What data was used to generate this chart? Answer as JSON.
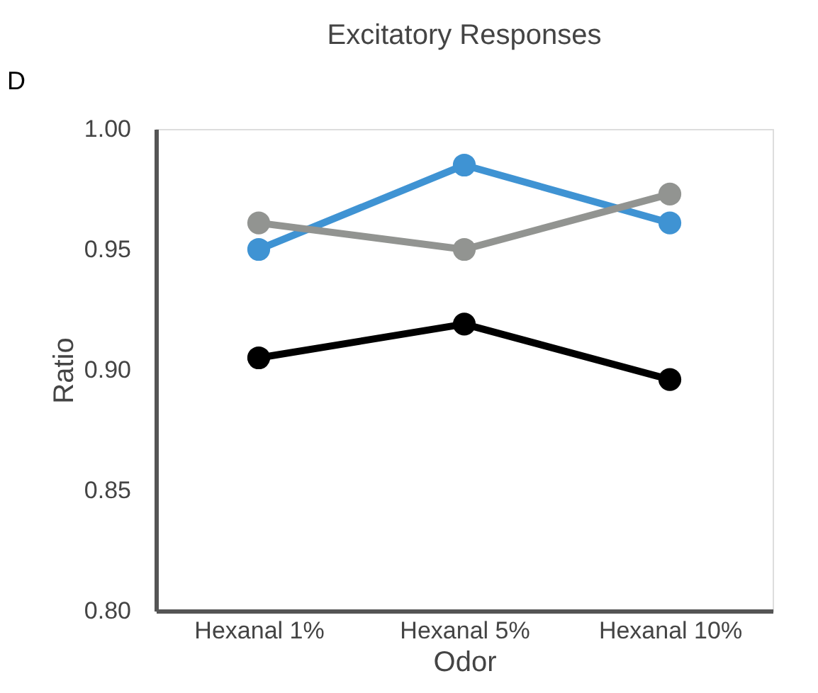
{
  "chart_data": {
    "type": "line",
    "title": "Excitatory Responses",
    "xlabel": "Odor",
    "ylabel": "Ratio",
    "annotations": [
      "D"
    ],
    "categories": [
      "Hexanal 1%",
      "Hexanal 5%",
      "Hexanal 10%"
    ],
    "series": [
      {
        "color": "#3f93d3",
        "values": [
          0.95,
          0.985,
          0.961
        ]
      },
      {
        "color": "#000000",
        "values": [
          0.905,
          0.919,
          0.896
        ]
      },
      {
        "color": "#929491",
        "values": [
          0.961,
          0.95,
          0.973
        ]
      }
    ],
    "ylim": [
      0.8,
      1.0
    ],
    "yticks": [
      {
        "value": 0.8,
        "label": "0.80"
      },
      {
        "value": 0.85,
        "label": "0.85"
      },
      {
        "value": 0.9,
        "label": "0.90"
      },
      {
        "value": 0.95,
        "label": "0.95"
      },
      {
        "value": 1.0,
        "label": "1.00"
      }
    ],
    "grid": false,
    "marker": "circle",
    "line_style": "solid"
  }
}
